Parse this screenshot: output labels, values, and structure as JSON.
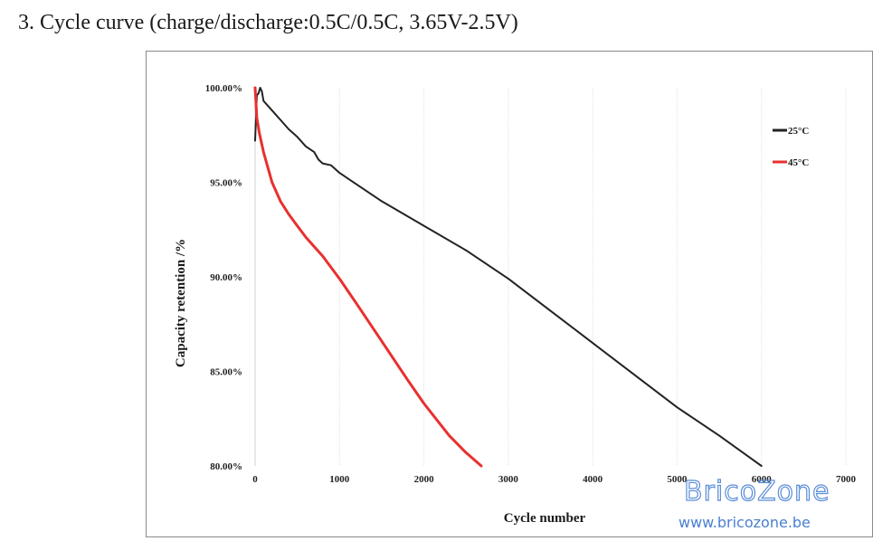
{
  "heading": "3. Cycle curve (charge/discharge:0.5C/0.5C, 3.65V-2.5V)",
  "watermark": {
    "brand": "BricoZone",
    "url": "www.bricozone.be"
  },
  "chart_data": {
    "type": "line",
    "title": "",
    "xlabel": "Cycle number",
    "ylabel": "Capacity retention /%",
    "xlim": [
      0,
      7000
    ],
    "ylim": [
      80,
      100
    ],
    "x_ticks": [
      "0",
      "1000",
      "2000",
      "3000",
      "4000",
      "5000",
      "6000",
      "7000"
    ],
    "y_ticks": [
      "80.00%",
      "85.00%",
      "90.00%",
      "95.00%",
      "100.00%"
    ],
    "grid": {
      "vertical": true,
      "horizontal": false
    },
    "legend_position": "top-right",
    "series": [
      {
        "name": "25°C",
        "color": "#222222",
        "x": [
          0,
          20,
          40,
          60,
          80,
          100,
          200,
          300,
          400,
          500,
          600,
          700,
          750,
          800,
          900,
          1000,
          1500,
          2000,
          2500,
          3000,
          3500,
          4000,
          4500,
          5000,
          5500,
          6000
        ],
        "y": [
          97.2,
          99.6,
          99.7,
          100.0,
          99.8,
          99.3,
          98.8,
          98.3,
          97.8,
          97.4,
          96.9,
          96.6,
          96.2,
          96.0,
          95.9,
          95.5,
          94.0,
          92.7,
          91.4,
          89.9,
          88.2,
          86.5,
          84.8,
          83.1,
          81.6,
          80.0
        ]
      },
      {
        "name": "45°C",
        "color": "#e8302e",
        "x": [
          0,
          20,
          50,
          100,
          150,
          200,
          300,
          400,
          500,
          600,
          700,
          800,
          1000,
          1200,
          1500,
          1800,
          2000,
          2300,
          2500,
          2680
        ],
        "y": [
          100.0,
          98.4,
          97.6,
          96.6,
          95.8,
          95.0,
          94.0,
          93.3,
          92.7,
          92.1,
          91.6,
          91.1,
          89.9,
          88.6,
          86.6,
          84.6,
          83.3,
          81.6,
          80.7,
          80.0
        ]
      }
    ]
  }
}
